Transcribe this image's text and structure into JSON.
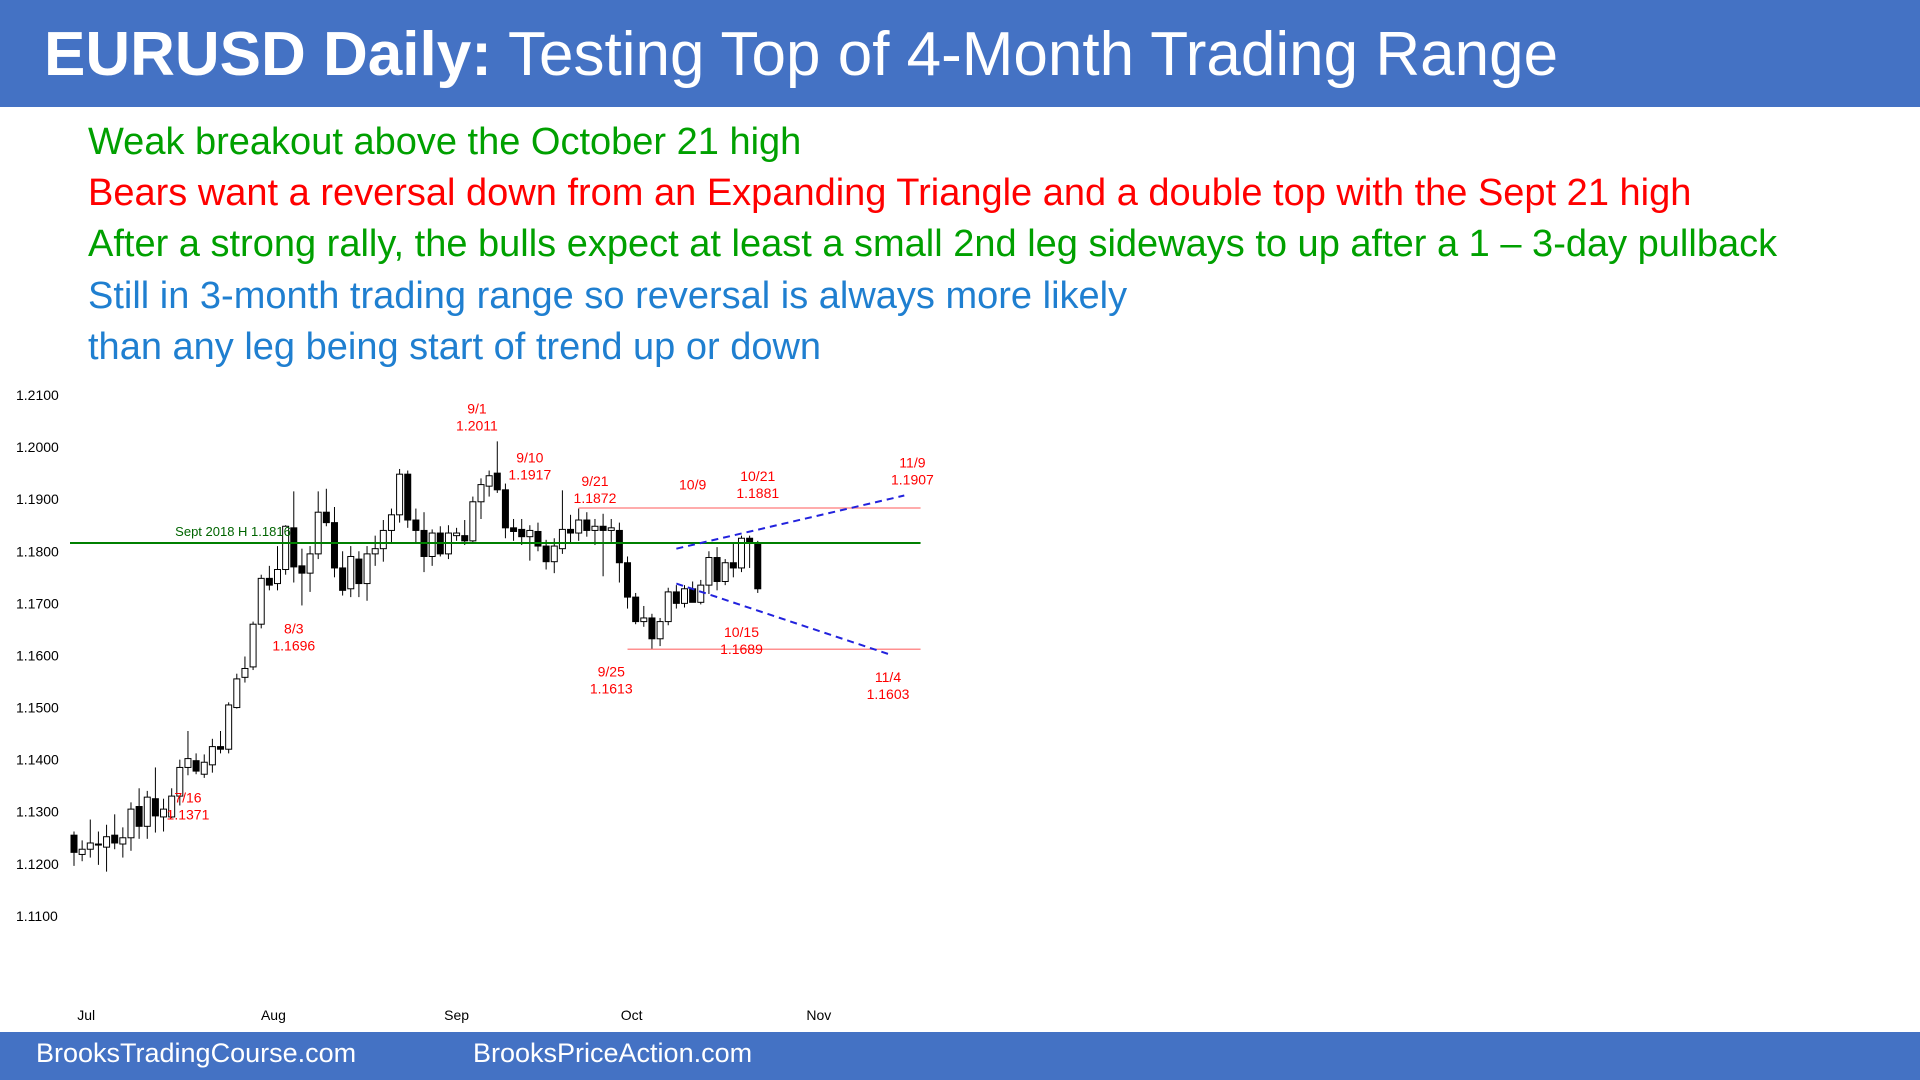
{
  "header": {
    "title_bold": "EURUSD Daily:",
    "title_rest": " Testing Top of 4-Month Trading Range"
  },
  "notes": [
    {
      "text": "Weak breakout above the October 21 high",
      "color": "#00a000"
    },
    {
      "text": "Bears want a reversal down from an Expanding Triangle and a double top with the Sept 21 high",
      "color": "#ff0000"
    },
    {
      "text": "After a strong rally, the bulls expect at least a small 2nd leg sideways to up after a 1 – 3-day pullback",
      "color": "#00a000"
    },
    {
      "text": "Still in 3-month trading range so reversal is always more likely",
      "color": "#1f7fd0"
    },
    {
      "text": "than any leg being start of trend up or down",
      "color": "#1f7fd0"
    }
  ],
  "footer": {
    "left": "BrooksTradingCourse.com",
    "right": "BrooksPriceAction.com"
  },
  "chart_data": {
    "type": "candlestick",
    "title": "",
    "ylim": [
      1.1,
      1.21
    ],
    "yticks": [
      "1.2100",
      "1.2000",
      "1.1900",
      "1.1800",
      "1.1700",
      "1.1600",
      "1.1500",
      "1.1400",
      "1.1300",
      "1.1200",
      "1.1100"
    ],
    "xticks": [
      {
        "label": "Jul",
        "index": 1.5
      },
      {
        "label": "Aug",
        "index": 24.5
      },
      {
        "label": "Sep",
        "index": 47
      },
      {
        "label": "Oct",
        "index": 68.5
      },
      {
        "label": "Nov",
        "index": 91.5
      }
    ],
    "colors": {
      "up": "#ffffff",
      "down": "#000000",
      "support": "#008000",
      "range": "#ff9090",
      "triangle": "#2222dd",
      "label": "#ff0000"
    },
    "horizontal_lines": [
      {
        "value": 1.1816,
        "label": "Sept 2018 H 1.1816",
        "color": "#008000",
        "from": 0,
        "to": 104
      }
    ],
    "range_lines": [
      {
        "value": 1.1883,
        "from": 62,
        "to": 104
      },
      {
        "value": 1.1612,
        "from": 68,
        "to": 104
      }
    ],
    "triangle_lines": [
      {
        "from": [
          74,
          1.1805
        ],
        "to": [
          102,
          1.1907
        ]
      },
      {
        "from": [
          74,
          1.1738
        ],
        "to": [
          100,
          1.1603
        ]
      }
    ],
    "annotations": [
      {
        "date": "9/1",
        "value": "1.2011",
        "index": 49.5,
        "price": 1.2011
      },
      {
        "date": "9/10",
        "value": "1.1917",
        "index": 56,
        "price": 1.1917
      },
      {
        "date": "9/21",
        "value": "1.1872",
        "index": 64,
        "price": 1.1872
      },
      {
        "date": "10/9",
        "value": "",
        "index": 76,
        "price": 1.1865
      },
      {
        "date": "10/21",
        "value": "1.1881",
        "index": 84,
        "price": 1.1881
      },
      {
        "date": "11/9",
        "value": "1.1907",
        "index": 103,
        "price": 1.1907
      },
      {
        "date": "8/3",
        "value": "1.1696",
        "index": 27,
        "price": 1.1696,
        "below": true
      },
      {
        "date": "10/15",
        "value": "1.1689",
        "index": 82,
        "price": 1.1689,
        "below": true
      },
      {
        "date": "9/25",
        "value": "1.1613",
        "index": 66,
        "price": 1.1613,
        "below": true
      },
      {
        "date": "11/4",
        "value": "1.1603",
        "index": 100,
        "price": 1.1603,
        "below": true
      },
      {
        "date": "7/16",
        "value": "1.1371",
        "index": 14,
        "price": 1.1371,
        "below": true
      }
    ],
    "candles": [
      {
        "o": 1.1255,
        "h": 1.1262,
        "l": 1.1196,
        "c": 1.1222
      },
      {
        "o": 1.1218,
        "h": 1.1245,
        "l": 1.1205,
        "c": 1.1228
      },
      {
        "o": 1.1228,
        "h": 1.1285,
        "l": 1.1212,
        "c": 1.124
      },
      {
        "o": 1.1238,
        "h": 1.1262,
        "l": 1.1198,
        "c": 1.1236
      },
      {
        "o": 1.1232,
        "h": 1.1275,
        "l": 1.1185,
        "c": 1.1252
      },
      {
        "o": 1.1255,
        "h": 1.1295,
        "l": 1.1228,
        "c": 1.124
      },
      {
        "o": 1.1238,
        "h": 1.127,
        "l": 1.1212,
        "c": 1.125
      },
      {
        "o": 1.125,
        "h": 1.1318,
        "l": 1.1225,
        "c": 1.1305
      },
      {
        "o": 1.131,
        "h": 1.1345,
        "l": 1.1248,
        "c": 1.1272
      },
      {
        "o": 1.1272,
        "h": 1.134,
        "l": 1.1248,
        "c": 1.1328
      },
      {
        "o": 1.1325,
        "h": 1.1385,
        "l": 1.126,
        "c": 1.1292
      },
      {
        "o": 1.129,
        "h": 1.1325,
        "l": 1.1262,
        "c": 1.1305
      },
      {
        "o": 1.129,
        "h": 1.1345,
        "l": 1.1288,
        "c": 1.133
      },
      {
        "o": 1.133,
        "h": 1.14,
        "l": 1.1312,
        "c": 1.1385
      },
      {
        "o": 1.1385,
        "h": 1.1455,
        "l": 1.137,
        "c": 1.1402
      },
      {
        "o": 1.1398,
        "h": 1.1412,
        "l": 1.1372,
        "c": 1.1378
      },
      {
        "o": 1.1372,
        "h": 1.141,
        "l": 1.1365,
        "c": 1.1395
      },
      {
        "o": 1.139,
        "h": 1.144,
        "l": 1.1375,
        "c": 1.1425
      },
      {
        "o": 1.1425,
        "h": 1.1455,
        "l": 1.1412,
        "c": 1.142
      },
      {
        "o": 1.142,
        "h": 1.151,
        "l": 1.1412,
        "c": 1.1505
      },
      {
        "o": 1.15,
        "h": 1.1565,
        "l": 1.1498,
        "c": 1.1555
      },
      {
        "o": 1.1558,
        "h": 1.1598,
        "l": 1.1548,
        "c": 1.1575
      },
      {
        "o": 1.1578,
        "h": 1.1665,
        "l": 1.1572,
        "c": 1.166
      },
      {
        "o": 1.166,
        "h": 1.1755,
        "l": 1.1652,
        "c": 1.1748
      },
      {
        "o": 1.1748,
        "h": 1.1772,
        "l": 1.1725,
        "c": 1.1735
      },
      {
        "o": 1.1738,
        "h": 1.181,
        "l": 1.1725,
        "c": 1.1765
      },
      {
        "o": 1.1765,
        "h": 1.185,
        "l": 1.1755,
        "c": 1.1848
      },
      {
        "o": 1.1845,
        "h": 1.1915,
        "l": 1.174,
        "c": 1.177
      },
      {
        "o": 1.1772,
        "h": 1.1805,
        "l": 1.1696,
        "c": 1.1758
      },
      {
        "o": 1.1758,
        "h": 1.181,
        "l": 1.1722,
        "c": 1.1795
      },
      {
        "o": 1.1795,
        "h": 1.1915,
        "l": 1.1785,
        "c": 1.1875
      },
      {
        "o": 1.1875,
        "h": 1.192,
        "l": 1.1848,
        "c": 1.1855
      },
      {
        "o": 1.1855,
        "h": 1.1885,
        "l": 1.175,
        "c": 1.1768
      },
      {
        "o": 1.1768,
        "h": 1.18,
        "l": 1.1715,
        "c": 1.1725
      },
      {
        "o": 1.1728,
        "h": 1.181,
        "l": 1.1712,
        "c": 1.179
      },
      {
        "o": 1.1785,
        "h": 1.18,
        "l": 1.1712,
        "c": 1.1738
      },
      {
        "o": 1.1738,
        "h": 1.181,
        "l": 1.1705,
        "c": 1.1795
      },
      {
        "o": 1.1795,
        "h": 1.183,
        "l": 1.1772,
        "c": 1.1805
      },
      {
        "o": 1.1805,
        "h": 1.186,
        "l": 1.178,
        "c": 1.184
      },
      {
        "o": 1.184,
        "h": 1.1882,
        "l": 1.1815,
        "c": 1.187
      },
      {
        "o": 1.187,
        "h": 1.1958,
        "l": 1.1855,
        "c": 1.1948
      },
      {
        "o": 1.1948,
        "h": 1.1955,
        "l": 1.1845,
        "c": 1.186
      },
      {
        "o": 1.186,
        "h": 1.1882,
        "l": 1.1815,
        "c": 1.184
      },
      {
        "o": 1.184,
        "h": 1.1875,
        "l": 1.176,
        "c": 1.179
      },
      {
        "o": 1.179,
        "h": 1.1842,
        "l": 1.1772,
        "c": 1.1835
      },
      {
        "o": 1.1835,
        "h": 1.1848,
        "l": 1.179,
        "c": 1.1795
      },
      {
        "o": 1.1795,
        "h": 1.185,
        "l": 1.1785,
        "c": 1.1835
      },
      {
        "o": 1.183,
        "h": 1.1845,
        "l": 1.182,
        "c": 1.1835
      },
      {
        "o": 1.183,
        "h": 1.186,
        "l": 1.1812,
        "c": 1.182
      },
      {
        "o": 1.182,
        "h": 1.1905,
        "l": 1.1815,
        "c": 1.1895
      },
      {
        "o": 1.1895,
        "h": 1.194,
        "l": 1.1862,
        "c": 1.1928
      },
      {
        "o": 1.1925,
        "h": 1.1955,
        "l": 1.1905,
        "c": 1.1945
      },
      {
        "o": 1.195,
        "h": 1.2011,
        "l": 1.1912,
        "c": 1.1918
      },
      {
        "o": 1.1918,
        "h": 1.193,
        "l": 1.1825,
        "c": 1.1845
      },
      {
        "o": 1.1845,
        "h": 1.1862,
        "l": 1.182,
        "c": 1.1838
      },
      {
        "o": 1.1842,
        "h": 1.1862,
        "l": 1.1812,
        "c": 1.1828
      },
      {
        "o": 1.1828,
        "h": 1.185,
        "l": 1.1782,
        "c": 1.184
      },
      {
        "o": 1.1838,
        "h": 1.1855,
        "l": 1.18,
        "c": 1.181
      },
      {
        "o": 1.181,
        "h": 1.1822,
        "l": 1.1765,
        "c": 1.178
      },
      {
        "o": 1.178,
        "h": 1.1825,
        "l": 1.1758,
        "c": 1.181
      },
      {
        "o": 1.1805,
        "h": 1.1917,
        "l": 1.1795,
        "c": 1.1842
      },
      {
        "o": 1.1842,
        "h": 1.187,
        "l": 1.1815,
        "c": 1.1835
      },
      {
        "o": 1.1835,
        "h": 1.1882,
        "l": 1.182,
        "c": 1.186
      },
      {
        "o": 1.186,
        "h": 1.1875,
        "l": 1.1828,
        "c": 1.184
      },
      {
        "o": 1.184,
        "h": 1.1862,
        "l": 1.1812,
        "c": 1.1848
      },
      {
        "o": 1.1848,
        "h": 1.1872,
        "l": 1.1752,
        "c": 1.184
      },
      {
        "o": 1.184,
        "h": 1.1862,
        "l": 1.1818,
        "c": 1.1845
      },
      {
        "o": 1.184,
        "h": 1.1855,
        "l": 1.174,
        "c": 1.1778
      },
      {
        "o": 1.1778,
        "h": 1.179,
        "l": 1.169,
        "c": 1.1712
      },
      {
        "o": 1.1712,
        "h": 1.172,
        "l": 1.166,
        "c": 1.1665
      },
      {
        "o": 1.1665,
        "h": 1.1695,
        "l": 1.1655,
        "c": 1.1672
      },
      {
        "o": 1.1672,
        "h": 1.168,
        "l": 1.1613,
        "c": 1.1632
      },
      {
        "o": 1.1632,
        "h": 1.1672,
        "l": 1.1618,
        "c": 1.1665
      },
      {
        "o": 1.1665,
        "h": 1.173,
        "l": 1.1658,
        "c": 1.1722
      },
      {
        "o": 1.1722,
        "h": 1.1735,
        "l": 1.169,
        "c": 1.17
      },
      {
        "o": 1.17,
        "h": 1.1735,
        "l": 1.1692,
        "c": 1.1728
      },
      {
        "o": 1.1728,
        "h": 1.1742,
        "l": 1.1702,
        "c": 1.1702
      },
      {
        "o": 1.1702,
        "h": 1.1745,
        "l": 1.1698,
        "c": 1.1735
      },
      {
        "o": 1.1735,
        "h": 1.18,
        "l": 1.1718,
        "c": 1.1788
      },
      {
        "o": 1.1788,
        "h": 1.1808,
        "l": 1.1725,
        "c": 1.1742
      },
      {
        "o": 1.1742,
        "h": 1.1785,
        "l": 1.1735,
        "c": 1.1778
      },
      {
        "o": 1.1778,
        "h": 1.1815,
        "l": 1.175,
        "c": 1.1768
      },
      {
        "o": 1.1768,
        "h": 1.183,
        "l": 1.176,
        "c": 1.1825
      },
      {
        "o": 1.1825,
        "h": 1.183,
        "l": 1.1768,
        "c": 1.1815
      },
      {
        "o": 1.1815,
        "h": 1.182,
        "l": 1.172,
        "c": 1.1728
      }
    ]
  }
}
